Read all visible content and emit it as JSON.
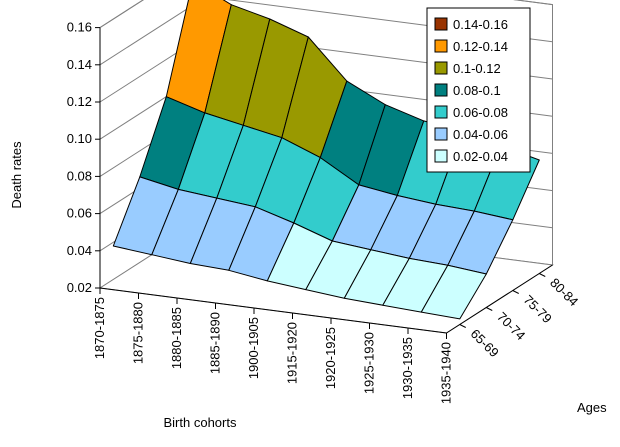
{
  "chart_data": {
    "type": "surface",
    "title": "",
    "xlabel": "Birth cohorts",
    "ylabel": "Death rates",
    "zlabel": "Ages",
    "categories": [
      "1870-1875",
      "1875-1880",
      "1880-1885",
      "1885-1890",
      "1900-1905",
      "1915-1920",
      "1920-1925",
      "1925-1930",
      "1930-1935",
      "1935-1940"
    ],
    "ages": [
      "65-69",
      "70-74",
      "75-79",
      "80-84"
    ],
    "ylim": [
      0.02,
      0.16
    ],
    "yticks": [
      "0.02",
      "0.04",
      "0.06",
      "0.08",
      "0.10",
      "0.12",
      "0.14",
      "0.16"
    ],
    "grid": true,
    "legend_position": "top-right",
    "series": [
      {
        "name": "80-84",
        "values": [
          0.153,
          0.143,
          0.138,
          0.131,
          0.11,
          0.1,
          0.094,
          0.091,
          0.086,
          0.081
        ]
      },
      {
        "name": "75-79",
        "values": [
          0.1,
          0.094,
          0.09,
          0.086,
          0.078,
          0.066,
          0.063,
          0.061,
          0.06,
          0.058
        ]
      },
      {
        "name": "70-74",
        "values": [
          0.066,
          0.062,
          0.06,
          0.058,
          0.052,
          0.045,
          0.043,
          0.041,
          0.04,
          0.038
        ]
      },
      {
        "name": "65-69",
        "values": [
          0.038,
          0.036,
          0.034,
          0.033,
          0.03,
          0.028,
          0.026,
          0.025,
          0.024,
          0.023
        ]
      }
    ],
    "legend": [
      {
        "label": "0.14-0.16",
        "color": "#993300"
      },
      {
        "label": "0.12-0.14",
        "color": "#FF9900"
      },
      {
        "label": "0.1-0.12",
        "color": "#999900"
      },
      {
        "label": "0.08-0.1",
        "color": "#008080"
      },
      {
        "label": "0.06-0.08",
        "color": "#33CCCC"
      },
      {
        "label": "0.04-0.06",
        "color": "#99CCFF"
      },
      {
        "label": "0.02-0.04",
        "color": "#CCFFFF"
      }
    ]
  }
}
